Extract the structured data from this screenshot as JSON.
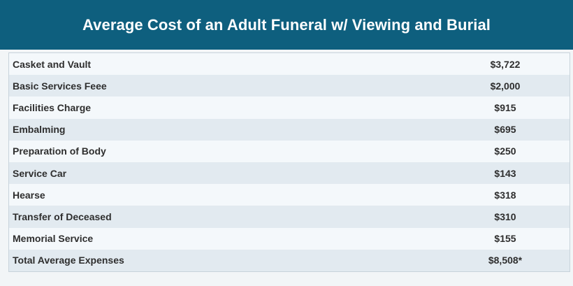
{
  "header": {
    "title": "Average Cost of an Adult Funeral w/ Viewing and Burial"
  },
  "table": {
    "rows": [
      {
        "label": "Casket and Vault",
        "value": "$3,722"
      },
      {
        "label": "Basic Services Feee",
        "value": "$2,000"
      },
      {
        "label": "Facilities Charge",
        "value": "$915"
      },
      {
        "label": "Embalming",
        "value": "$695"
      },
      {
        "label": "Preparation of Body",
        "value": "$250"
      },
      {
        "label": "Service Car",
        "value": "$143"
      },
      {
        "label": "Hearse",
        "value": "$318"
      },
      {
        "label": "Transfer of Deceased",
        "value": "$310"
      },
      {
        "label": "Memorial Service",
        "value": "$155"
      },
      {
        "label": "Total Average Expenses",
        "value": "$8,508*"
      }
    ]
  },
  "colors": {
    "header_bg": "#0e5f7e",
    "header_text": "#ffffff",
    "row_odd": "#f4f8fb",
    "row_even": "#e2eaf0",
    "body_text": "#2e2e2e"
  }
}
